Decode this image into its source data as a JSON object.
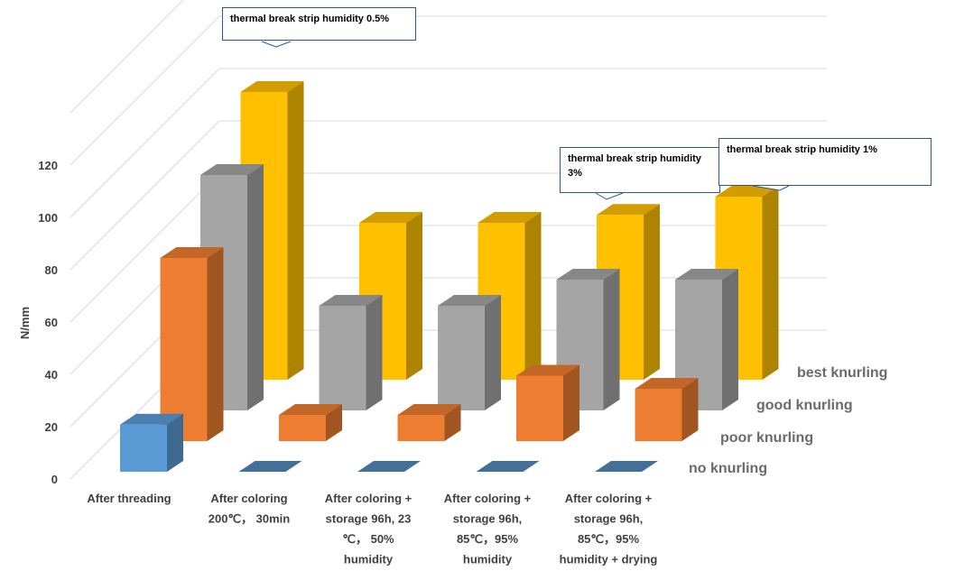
{
  "chart_data": {
    "type": "bar",
    "subtype": "3d-clustered-column",
    "ylabel": "N/mm",
    "yticks": [
      "0",
      "20",
      "40",
      "60",
      "80",
      "100",
      "120"
    ],
    "ylim": [
      0,
      140
    ],
    "categories": [
      [
        "After threading"
      ],
      [
        "After coloring",
        "200℃， 30min"
      ],
      [
        "After coloring +",
        "storage 96h, 23",
        "℃， 50%",
        "humidity"
      ],
      [
        "After coloring +",
        "storage 96h,",
        "85℃，95%",
        "humidity"
      ],
      [
        "After coloring +",
        "storage 96h,",
        "85℃，95%",
        "humidity + drying"
      ]
    ],
    "series": [
      {
        "name": "no knurling",
        "color": "#5b9bd5",
        "values": [
          18,
          0,
          0,
          0,
          0
        ]
      },
      {
        "name": "poor knurling",
        "color": "#ed7d31",
        "values": [
          70,
          10,
          10,
          25,
          20
        ]
      },
      {
        "name": "good knurling",
        "color": "#a5a5a5",
        "values": [
          90,
          40,
          40,
          50,
          50
        ]
      },
      {
        "name": "best knurling",
        "color": "#ffc000",
        "values": [
          110,
          60,
          60,
          63,
          70
        ]
      }
    ],
    "annotations": [
      {
        "text": "thermal break strip humidity 0.5%",
        "series": "best knurling",
        "category": 0
      },
      {
        "text": "thermal break strip humidity 3%",
        "series": "best knurling",
        "category": 3
      },
      {
        "text": "thermal break strip humidity 1%",
        "series": "best knurling",
        "category": 4
      }
    ],
    "grid": true
  }
}
